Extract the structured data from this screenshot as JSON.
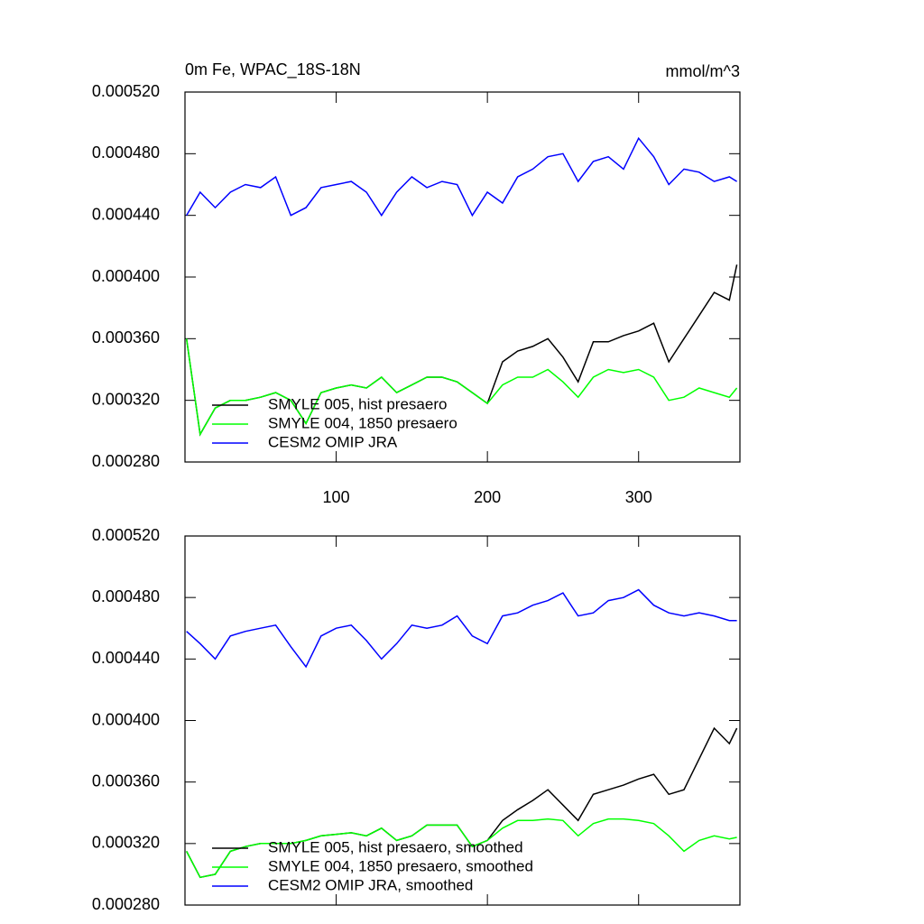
{
  "chart_data": [
    {
      "type": "line",
      "title": "0m Fe, WPAC_18S-18N",
      "units": "mmol/m^3",
      "x": [
        1,
        10,
        20,
        30,
        40,
        50,
        60,
        70,
        80,
        90,
        100,
        110,
        120,
        130,
        140,
        150,
        160,
        170,
        180,
        190,
        200,
        210,
        220,
        230,
        240,
        250,
        260,
        270,
        280,
        290,
        300,
        310,
        320,
        330,
        340,
        350,
        360,
        365
      ],
      "xlim": [
        0,
        367
      ],
      "xticks": [
        100,
        200,
        300
      ],
      "ylim": [
        0.00028,
        0.00052
      ],
      "yticks": [
        {
          "value": 0.00028,
          "label": "0.000280"
        },
        {
          "value": 0.00032,
          "label": "0.000320"
        },
        {
          "value": 0.00036,
          "label": "0.000360"
        },
        {
          "value": 0.0004,
          "label": "0.000400"
        },
        {
          "value": 0.00044,
          "label": "0.000440"
        },
        {
          "value": 0.00048,
          "label": "0.000480"
        },
        {
          "value": 0.00052,
          "label": "0.000520"
        }
      ],
      "series": [
        {
          "name": "SMYLE 005, hist presaero",
          "color": "#000000",
          "values": [
            0.00036,
            0.000298,
            0.000315,
            0.00032,
            0.00032,
            0.000322,
            0.000325,
            0.00032,
            0.000305,
            0.000325,
            0.000328,
            0.00033,
            0.000328,
            0.000335,
            0.000325,
            0.00033,
            0.000335,
            0.000335,
            0.000332,
            0.000325,
            0.000318,
            0.000345,
            0.000352,
            0.000355,
            0.00036,
            0.000348,
            0.000332,
            0.000358,
            0.000358,
            0.000362,
            0.000365,
            0.00037,
            0.000345,
            0.00036,
            0.000375,
            0.00039,
            0.000385,
            0.000408
          ]
        },
        {
          "name": "SMYLE 004, 1850 presaero",
          "color": "#00ff00",
          "values": [
            0.00036,
            0.000298,
            0.000315,
            0.00032,
            0.00032,
            0.000322,
            0.000325,
            0.00032,
            0.000305,
            0.000325,
            0.000328,
            0.00033,
            0.000328,
            0.000335,
            0.000325,
            0.00033,
            0.000335,
            0.000335,
            0.000332,
            0.000325,
            0.000318,
            0.00033,
            0.000335,
            0.000335,
            0.00034,
            0.000332,
            0.000322,
            0.000335,
            0.00034,
            0.000338,
            0.00034,
            0.000335,
            0.00032,
            0.000322,
            0.000328,
            0.000325,
            0.000322,
            0.000328
          ]
        },
        {
          "name": "CESM2 OMIP JRA",
          "color": "#0000ff",
          "values": [
            0.00044,
            0.000455,
            0.000445,
            0.000455,
            0.00046,
            0.000458,
            0.000465,
            0.00044,
            0.000445,
            0.000458,
            0.00046,
            0.000462,
            0.000455,
            0.00044,
            0.000455,
            0.000465,
            0.000458,
            0.000462,
            0.00046,
            0.00044,
            0.000455,
            0.000448,
            0.000465,
            0.00047,
            0.000478,
            0.00048,
            0.000462,
            0.000475,
            0.000478,
            0.00047,
            0.00049,
            0.000478,
            0.00046,
            0.00047,
            0.000468,
            0.000462,
            0.000465,
            0.000462
          ]
        }
      ]
    },
    {
      "type": "line",
      "x": [
        1,
        10,
        20,
        30,
        40,
        50,
        60,
        70,
        80,
        90,
        100,
        110,
        120,
        130,
        140,
        150,
        160,
        170,
        180,
        190,
        200,
        210,
        220,
        230,
        240,
        250,
        260,
        270,
        280,
        290,
        300,
        310,
        320,
        330,
        340,
        350,
        360,
        365
      ],
      "xlim": [
        0,
        367
      ],
      "xticks": [
        100,
        200,
        300
      ],
      "ylim": [
        0.00028,
        0.00052
      ],
      "yticks": [
        {
          "value": 0.00028,
          "label": "0.000280"
        },
        {
          "value": 0.00032,
          "label": "0.000320"
        },
        {
          "value": 0.00036,
          "label": "0.000360"
        },
        {
          "value": 0.0004,
          "label": "0.000400"
        },
        {
          "value": 0.00044,
          "label": "0.000440"
        },
        {
          "value": 0.00048,
          "label": "0.000480"
        },
        {
          "value": 0.00052,
          "label": "0.000520"
        }
      ],
      "series": [
        {
          "name": "SMYLE 005, hist presaero, smoothed",
          "color": "#000000",
          "values": [
            0.000315,
            0.000298,
            0.0003,
            0.000315,
            0.000318,
            0.00032,
            0.00032,
            0.00032,
            0.000322,
            0.000325,
            0.000326,
            0.000327,
            0.000325,
            0.00033,
            0.000322,
            0.000325,
            0.000332,
            0.000332,
            0.000332,
            0.000318,
            0.000322,
            0.000335,
            0.000342,
            0.000348,
            0.000355,
            0.000345,
            0.000335,
            0.000352,
            0.000355,
            0.000358,
            0.000362,
            0.000365,
            0.000352,
            0.000355,
            0.000375,
            0.000395,
            0.000385,
            0.000395
          ]
        },
        {
          "name": "SMYLE 004, 1850 presaero, smoothed",
          "color": "#00ff00",
          "values": [
            0.000315,
            0.000298,
            0.0003,
            0.000315,
            0.000318,
            0.00032,
            0.00032,
            0.00032,
            0.000322,
            0.000325,
            0.000326,
            0.000327,
            0.000325,
            0.00033,
            0.000322,
            0.000325,
            0.000332,
            0.000332,
            0.000332,
            0.000318,
            0.000322,
            0.00033,
            0.000335,
            0.000335,
            0.000336,
            0.000335,
            0.000325,
            0.000333,
            0.000336,
            0.000336,
            0.000335,
            0.000333,
            0.000325,
            0.000315,
            0.000322,
            0.000325,
            0.000323,
            0.000324
          ]
        },
        {
          "name": "CESM2 OMIP JRA, smoothed",
          "color": "#0000ff",
          "values": [
            0.000458,
            0.00045,
            0.00044,
            0.000455,
            0.000458,
            0.00046,
            0.000462,
            0.000448,
            0.000435,
            0.000455,
            0.00046,
            0.000462,
            0.000452,
            0.00044,
            0.00045,
            0.000462,
            0.00046,
            0.000462,
            0.000468,
            0.000455,
            0.00045,
            0.000468,
            0.00047,
            0.000475,
            0.000478,
            0.000483,
            0.000468,
            0.00047,
            0.000478,
            0.00048,
            0.000485,
            0.000475,
            0.00047,
            0.000468,
            0.00047,
            0.000468,
            0.000465,
            0.000465
          ]
        }
      ]
    }
  ]
}
